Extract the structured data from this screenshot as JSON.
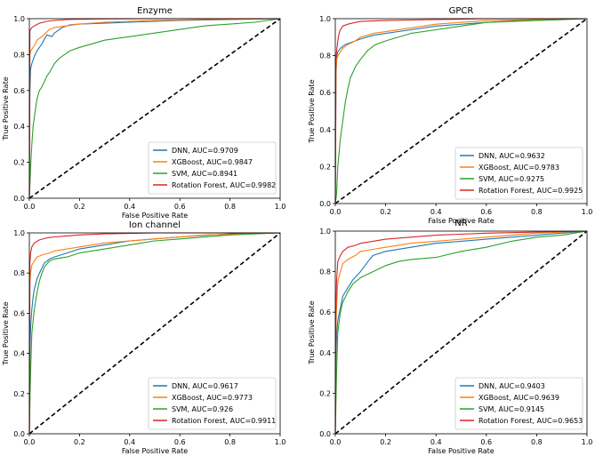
{
  "chart_data": [
    {
      "type": "line",
      "title": "Enzyme",
      "xlabel": "False Positive Rate",
      "ylabel": "True Positive Rate",
      "xlim": [
        0,
        1
      ],
      "ylim": [
        0,
        1
      ],
      "xticks": [
        "0.0",
        "0.2",
        "0.4",
        "0.6",
        "0.8",
        "1.0"
      ],
      "yticks": [
        "0.0",
        "0.2",
        "0.4",
        "0.6",
        "0.8",
        "1.0"
      ],
      "legend_position": "bottom-right",
      "series": [
        {
          "name": "DNN, AUC=0.9709",
          "color": "#1f77b4",
          "x": [
            0,
            0.002,
            0.005,
            0.01,
            0.015,
            0.02,
            0.03,
            0.05,
            0.07,
            0.09,
            0.1,
            0.13,
            0.16,
            0.2,
            0.3,
            0.4,
            0.6,
            0.8,
            1
          ],
          "y": [
            0,
            0.6,
            0.72,
            0.75,
            0.77,
            0.79,
            0.82,
            0.86,
            0.91,
            0.9,
            0.92,
            0.95,
            0.965,
            0.97,
            0.975,
            0.98,
            0.99,
            0.995,
            1
          ]
        },
        {
          "name": "XGBoost, AUC=0.9847",
          "color": "#ff7f0e",
          "x": [
            0,
            0.002,
            0.005,
            0.01,
            0.02,
            0.03,
            0.05,
            0.08,
            0.1,
            0.15,
            0.2,
            0.3,
            0.5,
            0.7,
            1
          ],
          "y": [
            0,
            0.8,
            0.82,
            0.83,
            0.85,
            0.88,
            0.9,
            0.94,
            0.95,
            0.96,
            0.97,
            0.98,
            0.99,
            0.995,
            1
          ]
        },
        {
          "name": "SVM, AUC=0.8941",
          "color": "#2ca02c",
          "x": [
            0,
            0.003,
            0.006,
            0.01,
            0.015,
            0.02,
            0.025,
            0.03,
            0.04,
            0.05,
            0.06,
            0.07,
            0.08,
            0.1,
            0.12,
            0.14,
            0.16,
            0.2,
            0.25,
            0.3,
            0.4,
            0.5,
            0.6,
            0.7,
            0.8,
            0.9,
            1
          ],
          "y": [
            0,
            0.1,
            0.2,
            0.3,
            0.4,
            0.45,
            0.5,
            0.55,
            0.6,
            0.62,
            0.65,
            0.68,
            0.7,
            0.75,
            0.78,
            0.8,
            0.82,
            0.84,
            0.86,
            0.88,
            0.9,
            0.92,
            0.94,
            0.96,
            0.97,
            0.98,
            1
          ]
        },
        {
          "name": "Rotation Forest, AUC=0.9982",
          "color": "#d62728",
          "x": [
            0,
            0.002,
            0.005,
            0.01,
            0.02,
            0.04,
            0.07,
            0.1,
            0.15,
            0.2,
            0.3,
            0.5,
            1
          ],
          "y": [
            0,
            0.93,
            0.94,
            0.95,
            0.96,
            0.975,
            0.985,
            0.99,
            0.995,
            0.997,
            0.999,
            1,
            1
          ]
        }
      ]
    },
    {
      "type": "line",
      "title": "GPCR",
      "xlabel": "False Positive Rate",
      "ylabel": "True Positive Rate",
      "xlim": [
        0,
        1
      ],
      "ylim": [
        0,
        1
      ],
      "xticks": [
        "0.0",
        "0.2",
        "0.4",
        "0.6",
        "0.8",
        "1.0"
      ],
      "yticks": [
        "0.0",
        "0.2",
        "0.4",
        "0.6",
        "0.8",
        "1.0"
      ],
      "legend_position": "bottom-right",
      "series": [
        {
          "name": "DNN, AUC=0.9632",
          "color": "#1f77b4",
          "x": [
            0,
            0.003,
            0.006,
            0.01,
            0.02,
            0.04,
            0.06,
            0.1,
            0.15,
            0.2,
            0.3,
            0.4,
            0.6,
            0.8,
            1
          ],
          "y": [
            0,
            0.7,
            0.8,
            0.82,
            0.84,
            0.86,
            0.87,
            0.89,
            0.91,
            0.92,
            0.94,
            0.96,
            0.98,
            0.995,
            1
          ]
        },
        {
          "name": "XGBoost, AUC=0.9783",
          "color": "#ff7f0e",
          "x": [
            0,
            0.003,
            0.006,
            0.01,
            0.02,
            0.03,
            0.05,
            0.08,
            0.1,
            0.15,
            0.2,
            0.3,
            0.4,
            0.6,
            0.8,
            1
          ],
          "y": [
            0,
            0.72,
            0.78,
            0.8,
            0.82,
            0.84,
            0.86,
            0.88,
            0.9,
            0.92,
            0.93,
            0.95,
            0.97,
            0.99,
            0.995,
            1
          ]
        },
        {
          "name": "SVM, AUC=0.9275",
          "color": "#2ca02c",
          "x": [
            0,
            0.005,
            0.01,
            0.02,
            0.03,
            0.04,
            0.05,
            0.06,
            0.08,
            0.1,
            0.13,
            0.16,
            0.2,
            0.3,
            0.4,
            0.5,
            0.6,
            0.8,
            1
          ],
          "y": [
            0,
            0.05,
            0.2,
            0.35,
            0.45,
            0.55,
            0.62,
            0.68,
            0.74,
            0.78,
            0.83,
            0.86,
            0.88,
            0.92,
            0.94,
            0.96,
            0.98,
            0.99,
            1
          ]
        },
        {
          "name": "Rotation Forest, AUC=0.9925",
          "color": "#d62728",
          "x": [
            0,
            0.002,
            0.005,
            0.01,
            0.015,
            0.02,
            0.03,
            0.05,
            0.08,
            0.1,
            0.2,
            0.4,
            0.6,
            1
          ],
          "y": [
            0,
            0.78,
            0.82,
            0.88,
            0.92,
            0.94,
            0.96,
            0.97,
            0.98,
            0.985,
            0.99,
            0.995,
            1,
            1
          ]
        }
      ]
    },
    {
      "type": "line",
      "title": "Ion channel",
      "xlabel": "False Positive Rate",
      "ylabel": "True Positive Rate",
      "xlim": [
        0,
        1
      ],
      "ylim": [
        0,
        1
      ],
      "xticks": [
        "0.0",
        "0.2",
        "0.4",
        "0.6",
        "0.8",
        "1.0"
      ],
      "yticks": [
        "0.0",
        "0.2",
        "0.4",
        "0.6",
        "0.8",
        "1.0"
      ],
      "legend_position": "bottom-right",
      "series": [
        {
          "name": "DNN, AUC=0.9617",
          "color": "#1f77b4",
          "x": [
            0,
            0.003,
            0.006,
            0.01,
            0.015,
            0.02,
            0.03,
            0.04,
            0.06,
            0.08,
            0.1,
            0.15,
            0.2,
            0.3,
            0.4,
            0.5,
            0.6,
            0.8,
            1
          ],
          "y": [
            0,
            0.45,
            0.55,
            0.62,
            0.68,
            0.72,
            0.77,
            0.8,
            0.85,
            0.87,
            0.88,
            0.9,
            0.92,
            0.94,
            0.96,
            0.97,
            0.98,
            0.995,
            1
          ]
        },
        {
          "name": "XGBoost, AUC=0.9773",
          "color": "#ff7f0e",
          "x": [
            0,
            0.002,
            0.005,
            0.01,
            0.02,
            0.03,
            0.05,
            0.08,
            0.1,
            0.15,
            0.2,
            0.3,
            0.5,
            0.7,
            1
          ],
          "y": [
            0,
            0.75,
            0.8,
            0.84,
            0.86,
            0.88,
            0.89,
            0.9,
            0.91,
            0.92,
            0.93,
            0.95,
            0.97,
            0.99,
            1
          ]
        },
        {
          "name": "SVM, AUC=0.926",
          "color": "#2ca02c",
          "x": [
            0,
            0.003,
            0.006,
            0.01,
            0.02,
            0.03,
            0.04,
            0.05,
            0.06,
            0.08,
            0.1,
            0.15,
            0.2,
            0.3,
            0.4,
            0.5,
            0.6,
            0.8,
            1
          ],
          "y": [
            0,
            0.2,
            0.35,
            0.5,
            0.62,
            0.7,
            0.76,
            0.8,
            0.83,
            0.86,
            0.87,
            0.88,
            0.9,
            0.92,
            0.94,
            0.96,
            0.97,
            0.99,
            1
          ]
        },
        {
          "name": "Rotation Forest, AUC=0.9911",
          "color": "#d62728",
          "x": [
            0,
            0.002,
            0.005,
            0.01,
            0.02,
            0.04,
            0.07,
            0.1,
            0.15,
            0.2,
            0.3,
            0.5,
            1
          ],
          "y": [
            0,
            0.85,
            0.9,
            0.93,
            0.95,
            0.965,
            0.975,
            0.98,
            0.985,
            0.99,
            0.995,
            1,
            1
          ]
        }
      ]
    },
    {
      "type": "line",
      "title": "NR",
      "xlabel": "False Positive Rate",
      "ylabel": "True Positive Rate",
      "xlim": [
        0,
        1
      ],
      "ylim": [
        0,
        1
      ],
      "xticks": [
        "0.0",
        "0.2",
        "0.4",
        "0.6",
        "0.8",
        "1.0"
      ],
      "yticks": [
        "0.0",
        "0.2",
        "0.4",
        "0.6",
        "0.8",
        "1.0"
      ],
      "legend_position": "bottom-right",
      "series": [
        {
          "name": "DNN, AUC=0.9403",
          "color": "#1f77b4",
          "x": [
            0,
            0.003,
            0.006,
            0.01,
            0.02,
            0.03,
            0.05,
            0.07,
            0.1,
            0.13,
            0.15,
            0.2,
            0.3,
            0.4,
            0.5,
            0.6,
            0.7,
            0.8,
            1
          ],
          "y": [
            0,
            0.4,
            0.5,
            0.56,
            0.62,
            0.68,
            0.72,
            0.76,
            0.8,
            0.85,
            0.88,
            0.9,
            0.92,
            0.94,
            0.95,
            0.96,
            0.97,
            0.98,
            1
          ]
        },
        {
          "name": "XGBoost, AUC=0.9639",
          "color": "#ff7f0e",
          "x": [
            0,
            0.003,
            0.006,
            0.01,
            0.02,
            0.03,
            0.05,
            0.08,
            0.1,
            0.15,
            0.2,
            0.3,
            0.4,
            0.6,
            0.8,
            1
          ],
          "y": [
            0,
            0.55,
            0.65,
            0.75,
            0.8,
            0.84,
            0.86,
            0.88,
            0.9,
            0.91,
            0.92,
            0.94,
            0.95,
            0.97,
            0.99,
            1
          ]
        },
        {
          "name": "SVM, AUC=0.9145",
          "color": "#2ca02c",
          "x": [
            0,
            0.005,
            0.01,
            0.02,
            0.03,
            0.05,
            0.07,
            0.1,
            0.15,
            0.2,
            0.25,
            0.3,
            0.4,
            0.5,
            0.6,
            0.7,
            0.8,
            0.9,
            1
          ],
          "y": [
            0,
            0.3,
            0.5,
            0.6,
            0.65,
            0.7,
            0.74,
            0.77,
            0.8,
            0.83,
            0.85,
            0.86,
            0.87,
            0.9,
            0.92,
            0.95,
            0.97,
            0.98,
            1
          ]
        },
        {
          "name": "Rotation Forest, AUC=0.9653",
          "color": "#d62728",
          "x": [
            0,
            0.002,
            0.005,
            0.01,
            0.02,
            0.03,
            0.05,
            0.08,
            0.1,
            0.15,
            0.2,
            0.3,
            0.4,
            0.6,
            0.8,
            1
          ],
          "y": [
            0,
            0.6,
            0.75,
            0.85,
            0.88,
            0.9,
            0.92,
            0.93,
            0.94,
            0.95,
            0.96,
            0.97,
            0.98,
            0.99,
            0.995,
            1
          ]
        }
      ]
    }
  ]
}
